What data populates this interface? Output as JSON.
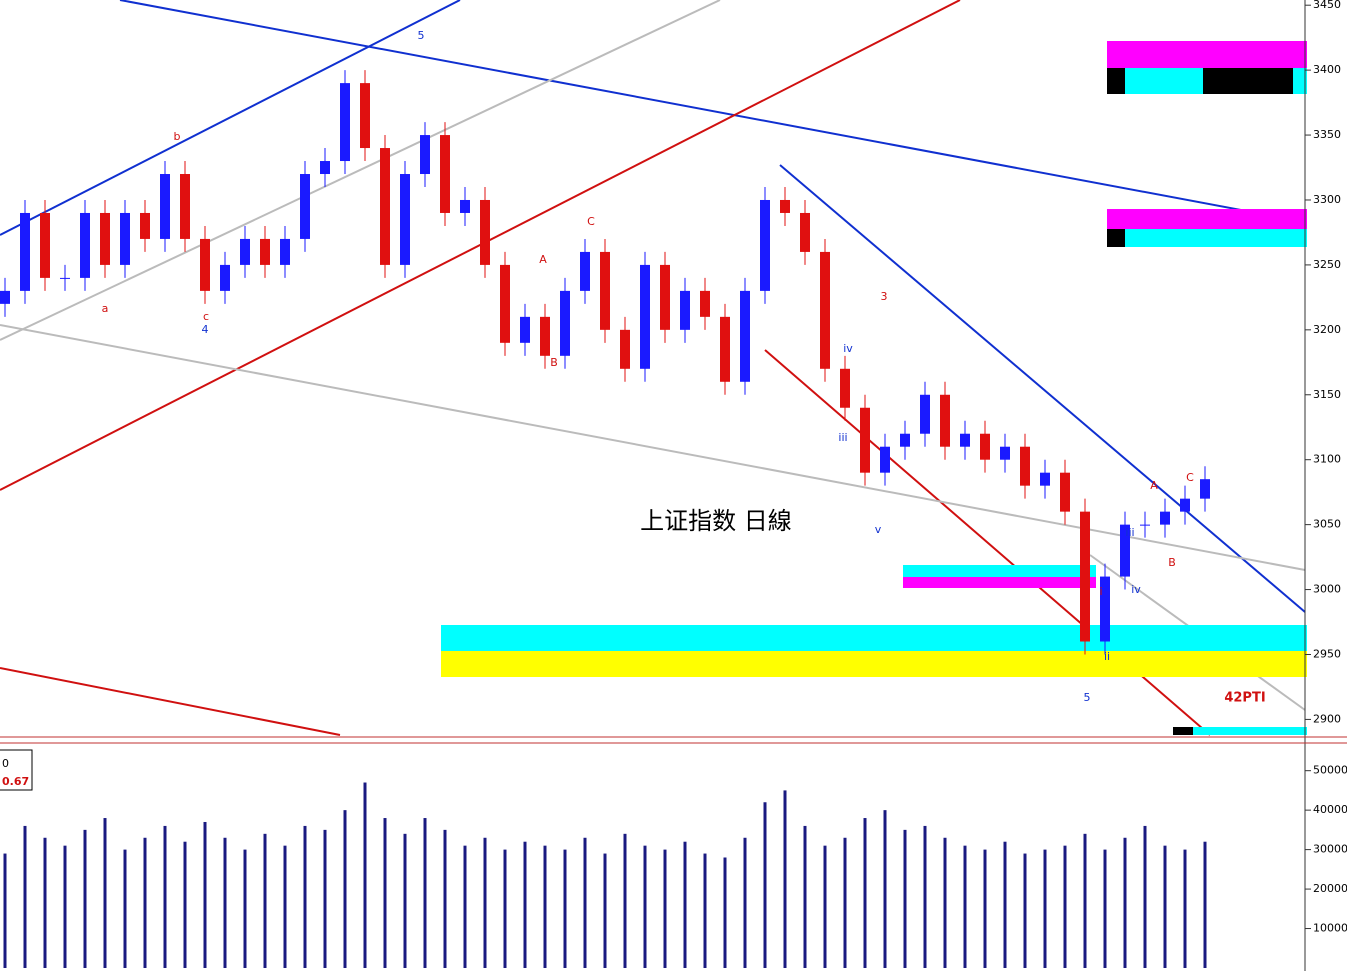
{
  "chart_data": [
    {
      "type": "candlestick",
      "title": "上证指数 日線",
      "annotation": "42PTI",
      "wave_labels": [
        "5",
        "b",
        "a",
        "c",
        "4",
        "A",
        "B",
        "C",
        "iv",
        "iii",
        "v",
        "3",
        "ii",
        "i",
        "iii",
        "iv",
        "5",
        "A",
        "B",
        "C"
      ],
      "open": [
        3220,
        3230,
        3290,
        3240,
        3240,
        3290,
        3250,
        3290,
        3270,
        3320,
        3270,
        3230,
        3250,
        3270,
        3250,
        3270,
        3320,
        3330,
        3390,
        3340,
        3250,
        3320,
        3350,
        3290,
        3300,
        3250,
        3190,
        3210,
        3180,
        3230,
        3260,
        3200,
        3170,
        3250,
        3200,
        3230,
        3210,
        3160,
        3230,
        3300,
        3290,
        3260,
        3170,
        3140,
        3090,
        3110,
        3120,
        3150,
        3110,
        3120,
        3100,
        3110,
        3080,
        3090,
        3060,
        2960,
        3010,
        3050,
        3050,
        3060,
        3070
      ],
      "high": [
        3240,
        3300,
        3300,
        3250,
        3300,
        3300,
        3300,
        3300,
        3330,
        3330,
        3280,
        3260,
        3280,
        3280,
        3280,
        3330,
        3340,
        3400,
        3400,
        3350,
        3330,
        3360,
        3360,
        3310,
        3310,
        3260,
        3220,
        3220,
        3240,
        3270,
        3270,
        3210,
        3260,
        3260,
        3240,
        3240,
        3220,
        3240,
        3310,
        3310,
        3300,
        3270,
        3180,
        3150,
        3120,
        3130,
        3160,
        3160,
        3130,
        3130,
        3120,
        3120,
        3100,
        3100,
        3070,
        3020,
        3060,
        3060,
        3070,
        3080,
        3095
      ],
      "low": [
        3210,
        3220,
        3230,
        3230,
        3230,
        3240,
        3240,
        3260,
        3260,
        3260,
        3220,
        3220,
        3240,
        3240,
        3240,
        3260,
        3310,
        3320,
        3330,
        3240,
        3240,
        3310,
        3280,
        3280,
        3240,
        3180,
        3180,
        3170,
        3170,
        3220,
        3190,
        3160,
        3160,
        3190,
        3190,
        3200,
        3150,
        3150,
        3220,
        3280,
        3250,
        3160,
        3130,
        3080,
        3080,
        3100,
        3110,
        3100,
        3100,
        3090,
        3090,
        3070,
        3070,
        3050,
        2950,
        2950,
        3000,
        3040,
        3040,
        3050,
        3060
      ],
      "close": [
        3230,
        3290,
        3240,
        3240,
        3290,
        3250,
        3290,
        3270,
        3320,
        3270,
        3230,
        3250,
        3270,
        3250,
        3270,
        3320,
        3330,
        3390,
        3340,
        3250,
        3320,
        3350,
        3290,
        3300,
        3250,
        3190,
        3210,
        3180,
        3230,
        3260,
        3200,
        3170,
        3250,
        3200,
        3230,
        3210,
        3160,
        3230,
        3300,
        3290,
        3260,
        3170,
        3140,
        3090,
        3110,
        3120,
        3150,
        3110,
        3120,
        3100,
        3110,
        3080,
        3090,
        3060,
        2960,
        3010,
        3050,
        3050,
        3060,
        3070,
        3085
      ],
      "up_color": "#1a1aff",
      "down_color": "#e01010",
      "ylim": [
        2888,
        3454
      ],
      "yticks": [
        2900,
        2950,
        3000,
        3050,
        3100,
        3150,
        3200,
        3250,
        3300,
        3350,
        3400,
        3450
      ]
    },
    {
      "type": "bar",
      "indicator_labels": [
        "0",
        "0.67"
      ],
      "color": "#1a1a80",
      "values": [
        29000,
        36000,
        33000,
        31000,
        35000,
        38000,
        30000,
        33000,
        36000,
        32000,
        37000,
        33000,
        30000,
        34000,
        31000,
        36000,
        35000,
        40000,
        47000,
        38000,
        34000,
        38000,
        35000,
        31000,
        33000,
        30000,
        32000,
        31000,
        30000,
        33000,
        29000,
        34000,
        31000,
        30000,
        32000,
        29000,
        28000,
        33000,
        42000,
        45000,
        36000,
        31000,
        33000,
        38000,
        40000,
        35000,
        36000,
        33000,
        31000,
        30000,
        32000,
        29000,
        30000,
        31000,
        34000,
        30000,
        33000,
        36000,
        31000,
        30000,
        32000
      ],
      "ylim": [
        0,
        56000
      ],
      "yticks": [
        10000,
        20000,
        30000,
        40000,
        50000
      ]
    }
  ]
}
